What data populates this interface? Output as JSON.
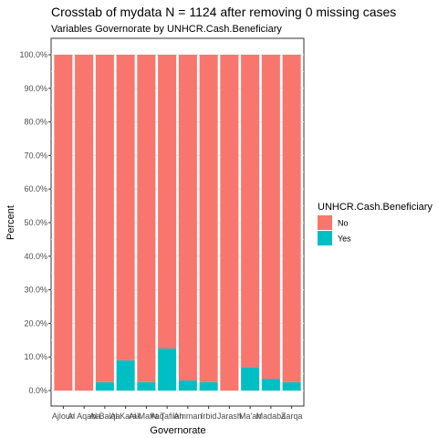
{
  "chart_data": {
    "type": "bar",
    "stacked": true,
    "title": "Crosstab of mydata N = 1124 after removing 0 missing cases",
    "subtitle": "Variables Governorate by UNHCR.Cash.Beneficiary",
    "xlabel": "Governorate",
    "ylabel": "Percent",
    "ylim": [
      0,
      100
    ],
    "yticks": [
      "0.0%",
      "10.0%",
      "20.0%",
      "30.0%",
      "40.0%",
      "50.0%",
      "60.0%",
      "70.0%",
      "80.0%",
      "90.0%",
      "100.0%"
    ],
    "grid": true,
    "categories": [
      "Ajloun",
      "Al Aqaba",
      "Al Balqa",
      "Al Karak",
      "Al Mafraq",
      "At Tafilah",
      "Amman",
      "Irbid",
      "Jarash",
      "Ma'an",
      "Madaba",
      "Zarqa"
    ],
    "series": [
      {
        "name": "No",
        "color": "#F8766D",
        "values": [
          100,
          100,
          97.5,
          91,
          97.5,
          87.5,
          97,
          97.5,
          100,
          93,
          96.5,
          97.5
        ]
      },
      {
        "name": "Yes",
        "color": "#00BFC4",
        "values": [
          0,
          0,
          2.5,
          9,
          2.5,
          12.5,
          3,
          2.5,
          0,
          7,
          3.5,
          2.5
        ]
      }
    ],
    "legend": {
      "title": "UNHCR.Cash.Beneficiary",
      "position": "right",
      "entries": [
        "No",
        "Yes"
      ]
    }
  }
}
